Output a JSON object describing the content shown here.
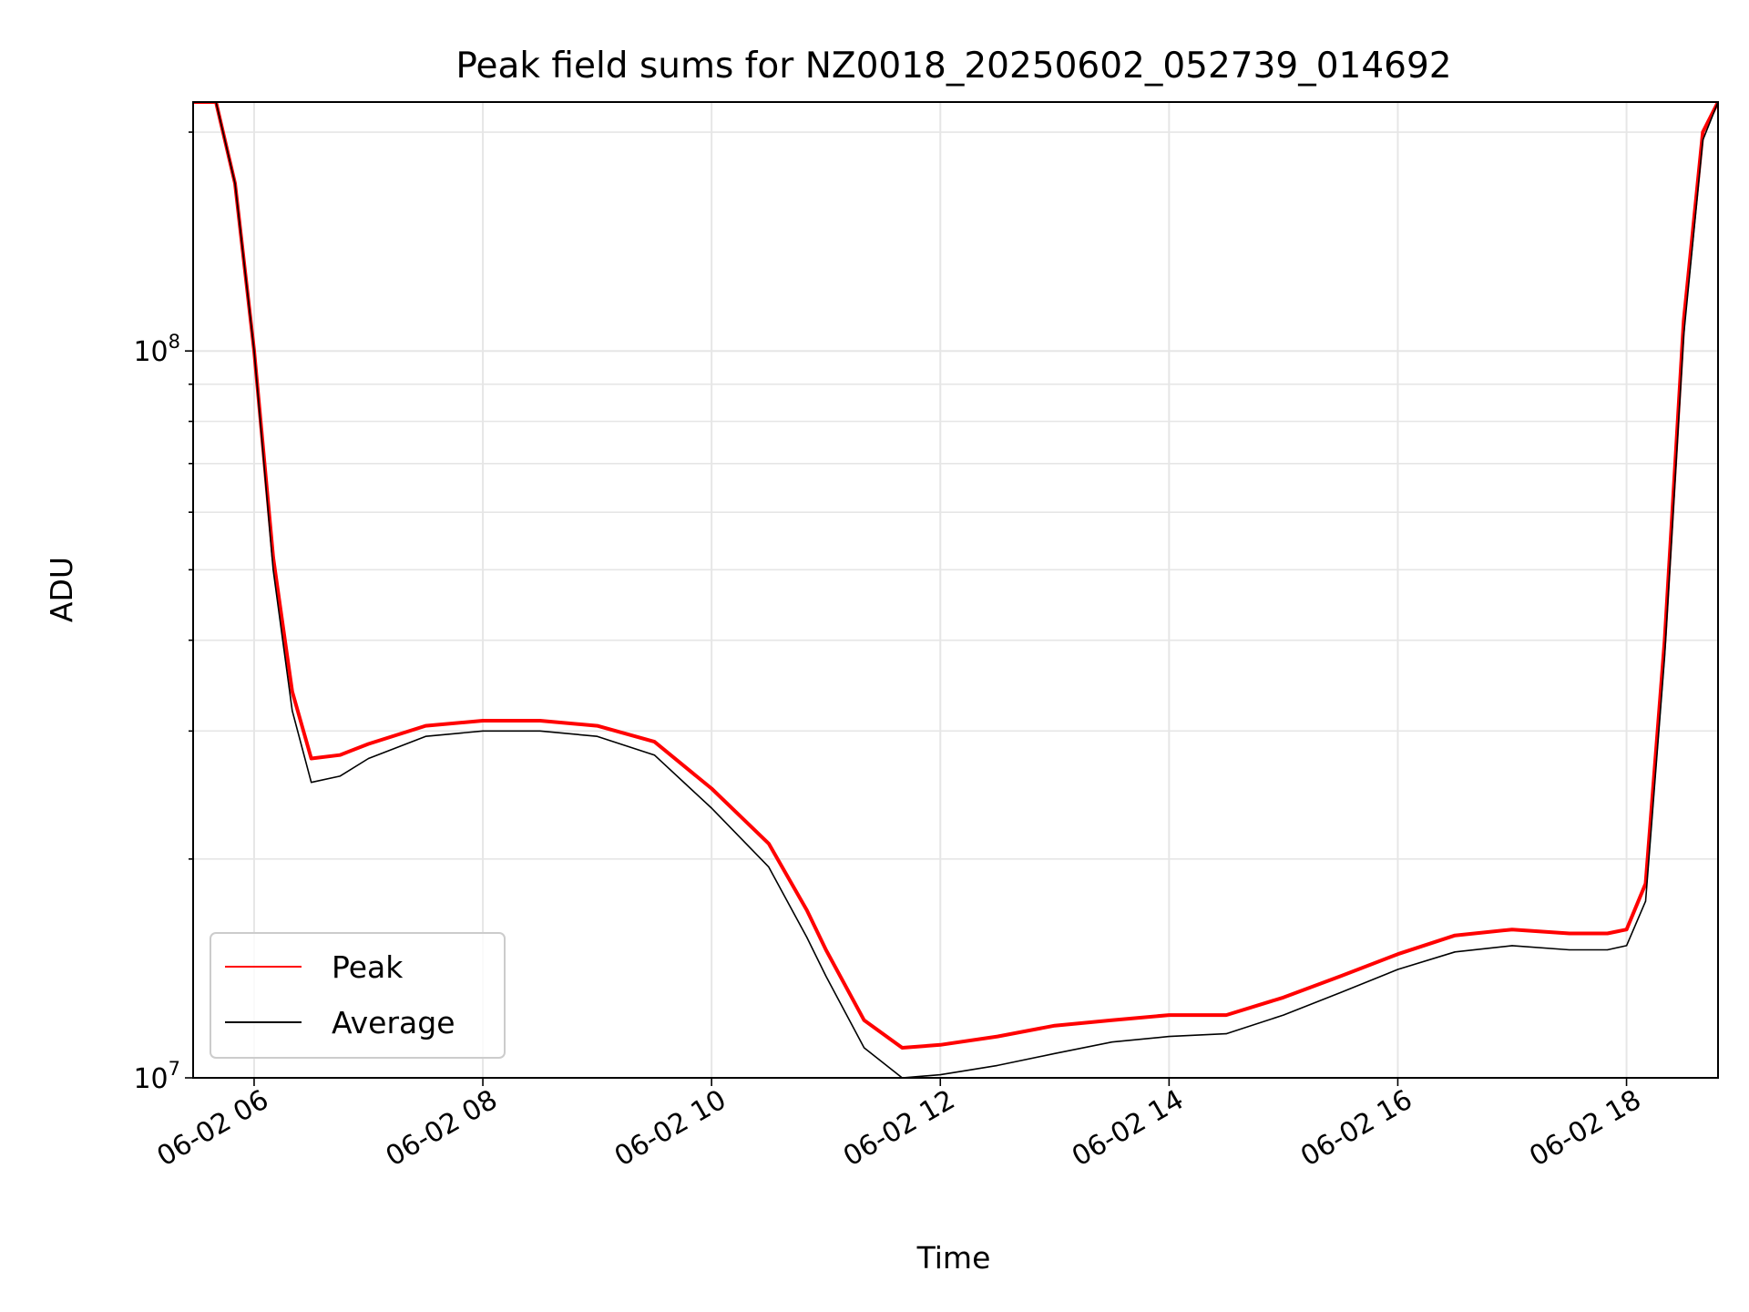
{
  "chart_data": {
    "type": "line",
    "title": "Peak field sums for NZ0018_20250602_052739_014692",
    "xlabel": "Time",
    "ylabel": "ADU",
    "x_range": [
      "2025-06-02 05:28",
      "2025-06-02 18:48"
    ],
    "ylim": [
      10000000,
      220000000
    ],
    "yscale": "log",
    "x_tick_labels": [
      "06-02 06",
      "06-02 08",
      "06-02 10",
      "06-02 12",
      "06-02 14",
      "06-02 16",
      "06-02 18"
    ],
    "x_tick_values": [
      "2025-06-02 06:00",
      "2025-06-02 08:00",
      "2025-06-02 10:00",
      "2025-06-02 12:00",
      "2025-06-02 14:00",
      "2025-06-02 16:00",
      "2025-06-02 18:00"
    ],
    "y_tick_labels": [
      {
        "base": "10",
        "exp": "7",
        "value": 10000000
      },
      {
        "base": "10",
        "exp": "8",
        "value": 100000000
      }
    ],
    "grid": true,
    "legend_position": "lower-left",
    "series": [
      {
        "name": "Peak",
        "color": "#ff0000",
        "x": [
          "2025-06-02 05:28",
          "2025-06-02 05:40",
          "2025-06-02 05:50",
          "2025-06-02 06:00",
          "2025-06-02 06:10",
          "2025-06-02 06:20",
          "2025-06-02 06:30",
          "2025-06-02 06:45",
          "2025-06-02 07:00",
          "2025-06-02 07:30",
          "2025-06-02 08:00",
          "2025-06-02 08:30",
          "2025-06-02 09:00",
          "2025-06-02 09:30",
          "2025-06-02 10:00",
          "2025-06-02 10:30",
          "2025-06-02 10:50",
          "2025-06-02 11:00",
          "2025-06-02 11:20",
          "2025-06-02 11:40",
          "2025-06-02 12:00",
          "2025-06-02 12:30",
          "2025-06-02 13:00",
          "2025-06-02 13:30",
          "2025-06-02 14:00",
          "2025-06-02 14:30",
          "2025-06-02 15:00",
          "2025-06-02 15:30",
          "2025-06-02 16:00",
          "2025-06-02 16:30",
          "2025-06-02 17:00",
          "2025-06-02 17:30",
          "2025-06-02 17:50",
          "2025-06-02 18:00",
          "2025-06-02 18:10",
          "2025-06-02 18:20",
          "2025-06-02 18:30",
          "2025-06-02 18:40",
          "2025-06-02 18:48"
        ],
        "values": [
          220000000,
          220000000,
          170000000,
          100000000,
          52000000,
          34000000,
          27500000,
          27800000,
          28800000,
          30500000,
          31000000,
          31000000,
          30500000,
          29000000,
          25000000,
          21000000,
          17000000,
          15000000,
          12000000,
          11000000,
          11100000,
          11400000,
          11800000,
          12000000,
          12200000,
          12200000,
          12900000,
          13800000,
          14800000,
          15700000,
          16000000,
          15800000,
          15800000,
          16000000,
          18500000,
          40000000,
          110000000,
          200000000,
          220000000
        ]
      },
      {
        "name": "Average",
        "color": "#000000",
        "x": [
          "2025-06-02 05:28",
          "2025-06-02 05:40",
          "2025-06-02 05:50",
          "2025-06-02 06:00",
          "2025-06-02 06:10",
          "2025-06-02 06:20",
          "2025-06-02 06:30",
          "2025-06-02 06:45",
          "2025-06-02 07:00",
          "2025-06-02 07:30",
          "2025-06-02 08:00",
          "2025-06-02 08:30",
          "2025-06-02 09:00",
          "2025-06-02 09:30",
          "2025-06-02 10:00",
          "2025-06-02 10:30",
          "2025-06-02 10:50",
          "2025-06-02 11:00",
          "2025-06-02 11:20",
          "2025-06-02 11:40",
          "2025-06-02 12:00",
          "2025-06-02 12:30",
          "2025-06-02 13:00",
          "2025-06-02 13:30",
          "2025-06-02 14:00",
          "2025-06-02 14:30",
          "2025-06-02 15:00",
          "2025-06-02 15:30",
          "2025-06-02 16:00",
          "2025-06-02 16:30",
          "2025-06-02 17:00",
          "2025-06-02 17:30",
          "2025-06-02 17:50",
          "2025-06-02 18:00",
          "2025-06-02 18:10",
          "2025-06-02 18:20",
          "2025-06-02 18:30",
          "2025-06-02 18:40",
          "2025-06-02 18:48"
        ],
        "values": [
          220000000,
          220000000,
          170000000,
          100000000,
          50000000,
          32000000,
          25500000,
          26000000,
          27500000,
          29500000,
          30000000,
          30000000,
          29500000,
          27800000,
          23500000,
          19500000,
          15600000,
          13800000,
          11000000,
          10000000,
          10100000,
          10400000,
          10800000,
          11200000,
          11400000,
          11500000,
          12200000,
          13100000,
          14100000,
          14900000,
          15200000,
          15000000,
          15000000,
          15200000,
          17500000,
          38000000,
          105000000,
          195000000,
          220000000
        ]
      }
    ]
  }
}
